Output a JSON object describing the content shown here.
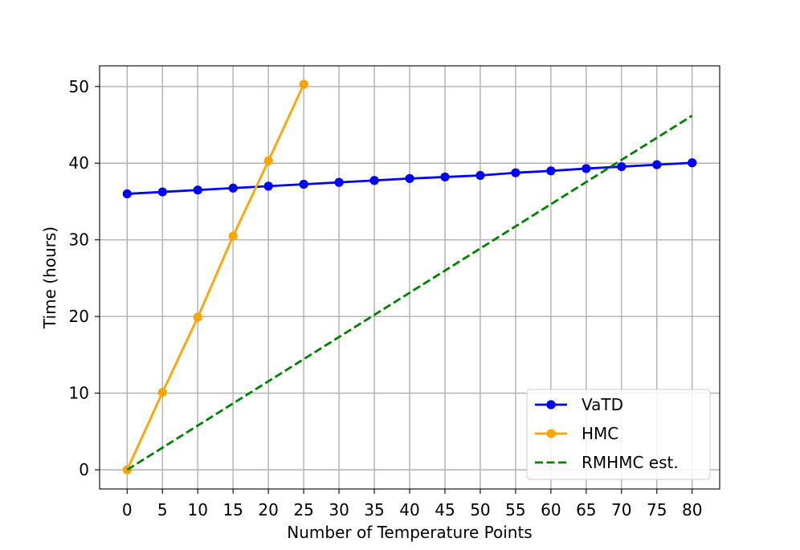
{
  "chart_data": {
    "type": "line",
    "title": "",
    "xlabel": "Number of Temperature Points",
    "ylabel": "Time (hours)",
    "xlim": [
      -3.9,
      83.9
    ],
    "ylim": [
      -2.5,
      52.7
    ],
    "xticks": [
      0,
      5,
      10,
      15,
      20,
      25,
      30,
      35,
      40,
      45,
      50,
      55,
      60,
      65,
      70,
      75,
      80
    ],
    "yticks": [
      0,
      10,
      20,
      30,
      40,
      50
    ],
    "grid": true,
    "legend_position": "bottom-right",
    "series": [
      {
        "name": "VaTD",
        "color": "#0000ff",
        "style": "solid",
        "marker": "circle",
        "x": [
          0,
          5,
          10,
          15,
          20,
          25,
          30,
          35,
          40,
          45,
          50,
          55,
          60,
          65,
          70,
          75,
          80
        ],
        "y": [
          36.0,
          36.25,
          36.5,
          36.75,
          37.0,
          37.25,
          37.5,
          37.75,
          38.0,
          38.2,
          38.4,
          38.75,
          39.0,
          39.3,
          39.55,
          39.8,
          40.05
        ]
      },
      {
        "name": "HMC",
        "color": "#ffa500",
        "style": "solid",
        "marker": "circle",
        "x": [
          0,
          5,
          10,
          15,
          20,
          25
        ],
        "y": [
          0,
          10.1,
          19.9,
          30.5,
          40.3,
          50.3
        ]
      },
      {
        "name": "RMHMC est.",
        "color": "#008000",
        "style": "dashed",
        "marker": "none",
        "x": [
          0,
          80
        ],
        "y": [
          0,
          46.2
        ]
      }
    ]
  }
}
